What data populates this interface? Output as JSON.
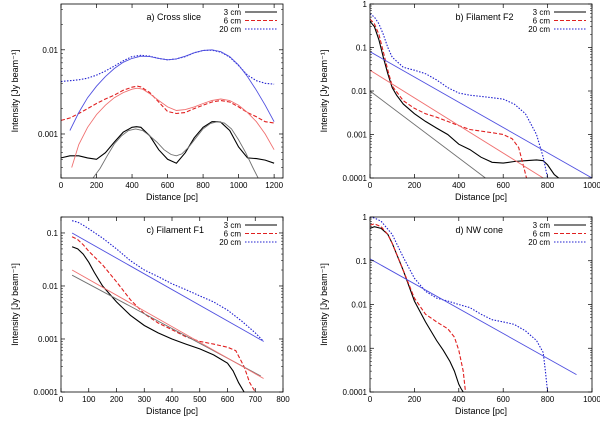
{
  "chart_data": [
    {
      "panel": "a",
      "type": "line",
      "yscale": "log",
      "title": "a) Cross slice",
      "xlabel": "Distance [pc]",
      "ylabel": "Intensity [Jy beam⁻¹]",
      "xlim": [
        0,
        1250
      ],
      "ylim": [
        0.0003,
        0.035
      ],
      "xticks": [
        0,
        200,
        400,
        600,
        800,
        1000,
        1200
      ],
      "xtick_labels": [
        "0",
        "200",
        "400",
        "600",
        "800",
        "1000",
        "1200"
      ],
      "yticks": [
        0.001,
        0.01
      ],
      "ytick_labels": [
        "0.001",
        "0.01"
      ],
      "legend": "top-right",
      "series": [
        {
          "name": "3 cm",
          "color": "#000000",
          "dash": "solid",
          "legend": true,
          "x": [
            0,
            50,
            100,
            150,
            200,
            250,
            300,
            350,
            400,
            425,
            450,
            500,
            550,
            600,
            650,
            700,
            750,
            800,
            850,
            880,
            900,
            950,
            1000,
            1050,
            1100,
            1150,
            1200
          ],
          "y": [
            0.00052,
            0.00055,
            0.00055,
            0.00052,
            0.0005,
            0.0006,
            0.0008,
            0.00105,
            0.0012,
            0.00122,
            0.0012,
            0.00095,
            0.00065,
            0.0005,
            0.00045,
            0.0006,
            0.0009,
            0.0012,
            0.0014,
            0.0014,
            0.00138,
            0.0011,
            0.0007,
            0.00052,
            0.00051,
            0.00049,
            0.00045
          ]
        },
        {
          "name": "6 cm",
          "color": "#e02020",
          "dash": "4,2",
          "legend": true,
          "x": [
            0,
            50,
            100,
            150,
            200,
            250,
            300,
            350,
            400,
            430,
            450,
            500,
            550,
            600,
            650,
            700,
            750,
            800,
            850,
            900,
            950,
            1000,
            1050,
            1100,
            1150,
            1200
          ],
          "y": [
            0.00145,
            0.00155,
            0.00175,
            0.002,
            0.0023,
            0.0026,
            0.0029,
            0.0033,
            0.0036,
            0.0037,
            0.00362,
            0.0031,
            0.0024,
            0.00185,
            0.00175,
            0.0018,
            0.002,
            0.0022,
            0.0024,
            0.0025,
            0.0024,
            0.0021,
            0.0018,
            0.0016,
            0.0014,
            0.00135
          ]
        },
        {
          "name": "20 cm",
          "color": "#2020d0",
          "dash": "1.5,1.5",
          "legend": true,
          "x": [
            0,
            50,
            100,
            150,
            200,
            250,
            300,
            350,
            400,
            450,
            500,
            550,
            600,
            650,
            700,
            750,
            800,
            850,
            900,
            950,
            1000,
            1050,
            1100,
            1150,
            1200
          ],
          "y": [
            0.0042,
            0.0043,
            0.0044,
            0.0046,
            0.005,
            0.0056,
            0.0064,
            0.0074,
            0.0083,
            0.0086,
            0.0084,
            0.0079,
            0.0076,
            0.0078,
            0.0083,
            0.0092,
            0.0098,
            0.0099,
            0.0094,
            0.0082,
            0.0065,
            0.005,
            0.0043,
            0.004,
            0.0039
          ]
        },
        {
          "name": "3 cm fit",
          "color": "#707070",
          "dash": "solid",
          "legend": false,
          "x": [
            180,
            220,
            260,
            300,
            340,
            380,
            420,
            460,
            500,
            540,
            580,
            620,
            650,
            680,
            720,
            760,
            800,
            840,
            880,
            920,
            960,
            1000,
            1040,
            1080,
            1110
          ],
          "y": [
            0.0003,
            0.00039,
            0.00055,
            0.00076,
            0.00095,
            0.0011,
            0.00115,
            0.0011,
            0.00095,
            0.0008,
            0.00065,
            0.00057,
            0.00055,
            0.00058,
            0.0007,
            0.0009,
            0.00115,
            0.00133,
            0.0014,
            0.00135,
            0.00115,
            0.00085,
            0.0006,
            0.0004,
            0.0003
          ]
        },
        {
          "name": "6 cm fit",
          "color": "#f07070",
          "dash": "solid",
          "legend": false,
          "x": [
            60,
            100,
            150,
            200,
            250,
            300,
            350,
            400,
            430,
            460,
            500,
            550,
            600,
            650,
            700,
            750,
            800,
            850,
            900,
            950,
            1000,
            1050,
            1100,
            1150,
            1200
          ],
          "y": [
            0.0004,
            0.00075,
            0.0012,
            0.0017,
            0.0022,
            0.0027,
            0.0031,
            0.0034,
            0.0035,
            0.0034,
            0.003,
            0.0025,
            0.0021,
            0.0019,
            0.00195,
            0.0021,
            0.0023,
            0.0025,
            0.0026,
            0.0025,
            0.0022,
            0.0018,
            0.0014,
            0.001,
            0.00065
          ]
        },
        {
          "name": "20 cm fit",
          "color": "#5050e0",
          "dash": "solid",
          "legend": false,
          "x": [
            50,
            100,
            150,
            200,
            250,
            300,
            350,
            400,
            450,
            500,
            550,
            600,
            650,
            700,
            750,
            800,
            850,
            900,
            950,
            1000,
            1050,
            1100,
            1150,
            1200
          ],
          "y": [
            0.0011,
            0.0018,
            0.0027,
            0.0037,
            0.0048,
            0.006,
            0.0071,
            0.0079,
            0.0084,
            0.0083,
            0.0079,
            0.0076,
            0.0078,
            0.0084,
            0.0092,
            0.0098,
            0.01,
            0.0095,
            0.0083,
            0.0066,
            0.0048,
            0.0033,
            0.0022,
            0.0014
          ]
        }
      ]
    },
    {
      "panel": "b",
      "type": "line",
      "yscale": "log",
      "title": "b) Filament F2",
      "xlabel": "Distance [pc]",
      "ylabel": "Intensity [Jy beam⁻¹]",
      "xlim": [
        0,
        1000
      ],
      "ylim": [
        0.0001,
        1
      ],
      "xticks": [
        0,
        200,
        400,
        600,
        800,
        1000
      ],
      "xtick_labels": [
        "0",
        "200",
        "400",
        "600",
        "800",
        "1000"
      ],
      "yticks": [
        0.0001,
        0.001,
        0.01,
        0.1,
        1
      ],
      "ytick_labels": [
        "0.0001",
        "0.001",
        "0.01",
        "0.1",
        "1"
      ],
      "legend": "top-right",
      "series": [
        {
          "name": "3 cm",
          "color": "#000000",
          "dash": "solid",
          "legend": true,
          "x": [
            0,
            20,
            40,
            60,
            80,
            100,
            120,
            150,
            200,
            250,
            300,
            350,
            400,
            450,
            500,
            550,
            600,
            650,
            700,
            750,
            780,
            800,
            830,
            850
          ],
          "y": [
            0.4,
            0.3,
            0.15,
            0.06,
            0.025,
            0.012,
            0.008,
            0.005,
            0.003,
            0.002,
            0.0014,
            0.001,
            0.0006,
            0.00045,
            0.0003,
            0.00023,
            0.00022,
            0.00024,
            0.00025,
            0.00026,
            0.00025,
            0.0002,
            0.00012,
            0.0001
          ]
        },
        {
          "name": "6 cm",
          "color": "#e02020",
          "dash": "4,2",
          "legend": true,
          "x": [
            0,
            20,
            40,
            60,
            80,
            100,
            150,
            200,
            250,
            300,
            350,
            400,
            450,
            500,
            550,
            600,
            640,
            670,
            690,
            705
          ],
          "y": [
            0.45,
            0.35,
            0.2,
            0.08,
            0.03,
            0.013,
            0.006,
            0.004,
            0.003,
            0.0025,
            0.002,
            0.0016,
            0.0013,
            0.0012,
            0.0011,
            0.001,
            0.0008,
            0.0005,
            0.0002,
            0.0001
          ]
        },
        {
          "name": "20 cm",
          "color": "#2020d0",
          "dash": "1.5,1.5",
          "legend": true,
          "x": [
            0,
            20,
            40,
            60,
            80,
            100,
            150,
            200,
            250,
            300,
            350,
            400,
            450,
            500,
            550,
            600,
            650,
            700,
            750,
            780,
            800
          ],
          "y": [
            0.6,
            0.5,
            0.35,
            0.2,
            0.1,
            0.06,
            0.035,
            0.03,
            0.025,
            0.018,
            0.012,
            0.009,
            0.008,
            0.0075,
            0.007,
            0.0065,
            0.005,
            0.003,
            0.001,
            0.0003,
            0.0001
          ]
        },
        {
          "name": "3 cm fit",
          "color": "#707070",
          "dash": "solid",
          "legend": false,
          "x": [
            0,
            520
          ],
          "y": [
            0.01,
            0.0001
          ]
        },
        {
          "name": "6 cm fit",
          "color": "#f07070",
          "dash": "solid",
          "legend": false,
          "x": [
            0,
            780
          ],
          "y": [
            0.03,
            0.0001
          ]
        },
        {
          "name": "20 cm fit",
          "color": "#5050e0",
          "dash": "solid",
          "legend": false,
          "x": [
            0,
            1000
          ],
          "y": [
            0.08,
            0.0001
          ]
        }
      ]
    },
    {
      "panel": "c",
      "type": "line",
      "yscale": "log",
      "title": "c) Filament F1",
      "xlabel": "Distance [pc]",
      "ylabel": "Intensity [Jy beam⁻¹]",
      "xlim": [
        0,
        800
      ],
      "ylim": [
        0.0001,
        0.2
      ],
      "xticks": [
        0,
        100,
        200,
        300,
        400,
        500,
        600,
        700,
        800
      ],
      "xtick_labels": [
        "0",
        "100",
        "200",
        "300",
        "400",
        "500",
        "600",
        "700",
        "800"
      ],
      "yticks": [
        0.0001,
        0.001,
        0.01,
        0.1
      ],
      "ytick_labels": [
        "0.0001",
        "0.001",
        "0.01",
        "0.1"
      ],
      "legend": "top-right",
      "series": [
        {
          "name": "3 cm",
          "color": "#000000",
          "dash": "solid",
          "legend": true,
          "x": [
            40,
            60,
            80,
            100,
            120,
            150,
            200,
            250,
            300,
            350,
            400,
            450,
            500,
            550,
            600,
            620,
            640,
            660
          ],
          "y": [
            0.055,
            0.05,
            0.04,
            0.028,
            0.018,
            0.01,
            0.005,
            0.0028,
            0.0018,
            0.0013,
            0.001,
            0.0008,
            0.00065,
            0.0005,
            0.00035,
            0.00025,
            0.00015,
            0.0001
          ]
        },
        {
          "name": "6 cm",
          "color": "#e02020",
          "dash": "4,2",
          "legend": true,
          "x": [
            40,
            60,
            80,
            100,
            150,
            200,
            250,
            300,
            350,
            400,
            450,
            500,
            550,
            600,
            630,
            660,
            680,
            700
          ],
          "y": [
            0.085,
            0.075,
            0.06,
            0.045,
            0.025,
            0.012,
            0.0055,
            0.003,
            0.002,
            0.0015,
            0.0011,
            0.0009,
            0.0008,
            0.0007,
            0.0006,
            0.0003,
            0.00015,
            0.0001
          ]
        },
        {
          "name": "20 cm",
          "color": "#2020d0",
          "dash": "1.5,1.5",
          "legend": true,
          "x": [
            40,
            60,
            80,
            100,
            150,
            200,
            250,
            300,
            350,
            400,
            450,
            500,
            550,
            600,
            650,
            700,
            730
          ],
          "y": [
            0.17,
            0.16,
            0.14,
            0.12,
            0.08,
            0.05,
            0.03,
            0.02,
            0.015,
            0.011,
            0.0085,
            0.0065,
            0.005,
            0.0035,
            0.0022,
            0.0013,
            0.0009
          ]
        },
        {
          "name": "3 cm fit",
          "color": "#707070",
          "dash": "solid",
          "legend": false,
          "x": [
            40,
            720
          ],
          "y": [
            0.016,
            0.0002
          ]
        },
        {
          "name": "6 cm fit",
          "color": "#f07070",
          "dash": "solid",
          "legend": false,
          "x": [
            40,
            730
          ],
          "y": [
            0.02,
            0.00018
          ]
        },
        {
          "name": "20 cm fit",
          "color": "#5050e0",
          "dash": "solid",
          "legend": false,
          "x": [
            40,
            730
          ],
          "y": [
            0.1,
            0.0009
          ]
        }
      ]
    },
    {
      "panel": "d",
      "type": "line",
      "yscale": "log",
      "title": "d) NW cone",
      "xlabel": "Distance [pc]",
      "ylabel": "Intensity [Jy beam⁻¹]",
      "xlim": [
        0,
        1000
      ],
      "ylim": [
        0.0001,
        1
      ],
      "xticks": [
        0,
        200,
        400,
        600,
        800,
        1000
      ],
      "xtick_labels": [
        "0",
        "200",
        "400",
        "600",
        "800",
        "1000"
      ],
      "yticks": [
        0.0001,
        0.001,
        0.01,
        0.1,
        1
      ],
      "ytick_labels": [
        "0.0001",
        "0.001",
        "0.01",
        "0.1",
        "1"
      ],
      "legend": "top-right",
      "series": [
        {
          "name": "3 cm",
          "color": "#000000",
          "dash": "solid",
          "legend": true,
          "x": [
            0,
            20,
            50,
            80,
            100,
            150,
            200,
            250,
            300,
            330,
            360,
            380,
            400,
            410,
            420
          ],
          "y": [
            0.55,
            0.6,
            0.55,
            0.4,
            0.25,
            0.06,
            0.012,
            0.004,
            0.0015,
            0.0009,
            0.0005,
            0.0003,
            0.00015,
            0.00012,
            0.0001
          ]
        },
        {
          "name": "6 cm",
          "color": "#e02020",
          "dash": "4,2",
          "legend": true,
          "x": [
            0,
            20,
            50,
            80,
            100,
            150,
            200,
            250,
            300,
            350,
            380,
            400,
            420,
            430
          ],
          "y": [
            0.65,
            0.7,
            0.6,
            0.4,
            0.25,
            0.06,
            0.014,
            0.006,
            0.004,
            0.0028,
            0.0018,
            0.0009,
            0.0003,
            0.0001
          ]
        },
        {
          "name": "20 cm",
          "color": "#2020d0",
          "dash": "1.5,1.5",
          "legend": true,
          "x": [
            0,
            20,
            50,
            100,
            150,
            200,
            250,
            300,
            350,
            400,
            450,
            500,
            550,
            600,
            650,
            700,
            750,
            780,
            790,
            800
          ],
          "y": [
            1,
            0.95,
            0.8,
            0.4,
            0.12,
            0.04,
            0.02,
            0.014,
            0.012,
            0.01,
            0.0085,
            0.006,
            0.0045,
            0.004,
            0.0035,
            0.0025,
            0.0015,
            0.0008,
            0.0003,
            0.0001
          ]
        },
        {
          "name": "20 cm fit",
          "color": "#5050e0",
          "dash": "solid",
          "legend": false,
          "x": [
            0,
            930
          ],
          "y": [
            0.11,
            0.00025
          ]
        }
      ]
    }
  ]
}
